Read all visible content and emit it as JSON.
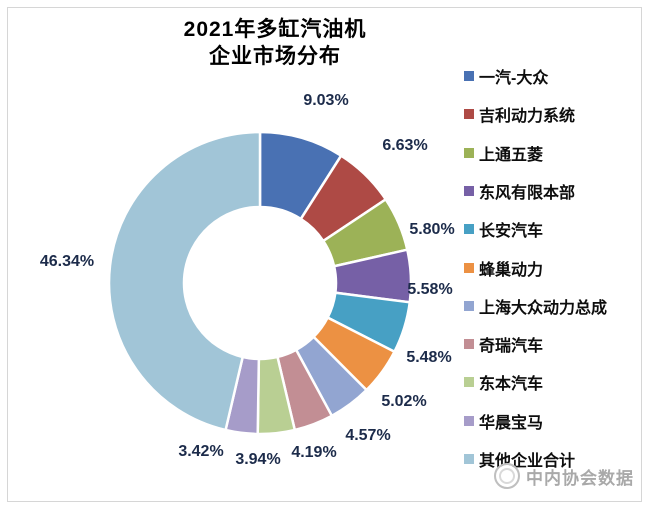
{
  "title": {
    "line1": "2021年多缸汽油机",
    "line2": "企业市场分布"
  },
  "watermark": {
    "text": "中内协会数据"
  },
  "chart_data": {
    "type": "pie",
    "subtype": "donut",
    "title": "2021年多缸汽油机企业市场分布",
    "legend_position": "right",
    "start_angle_deg": 0,
    "direction": "clockwise",
    "categories": [
      "一汽-大众",
      "吉利动力系统",
      "上通五菱",
      "东风有限本部",
      "长安汽车",
      "蜂巢动力",
      "上海大众动力总成",
      "奇瑞汽车",
      "东本汽车",
      "华晨宝马",
      "其他企业合计"
    ],
    "values": [
      9.03,
      6.63,
      5.8,
      5.58,
      5.48,
      5.02,
      4.57,
      4.19,
      3.94,
      3.42,
      46.34
    ],
    "labels": [
      "9.03%",
      "6.63%",
      "5.80%",
      "5.58%",
      "5.48%",
      "5.02%",
      "4.57%",
      "4.19%",
      "3.94%",
      "3.42%",
      "46.34%"
    ],
    "colors": [
      "#4971b3",
      "#ae4a45",
      "#9cb257",
      "#7660a6",
      "#47a0c4",
      "#ec9143",
      "#92a5d1",
      "#c28e94",
      "#b9cf93",
      "#a69cc9",
      "#a1c5d7"
    ],
    "label_color": "#1c2b4a"
  }
}
